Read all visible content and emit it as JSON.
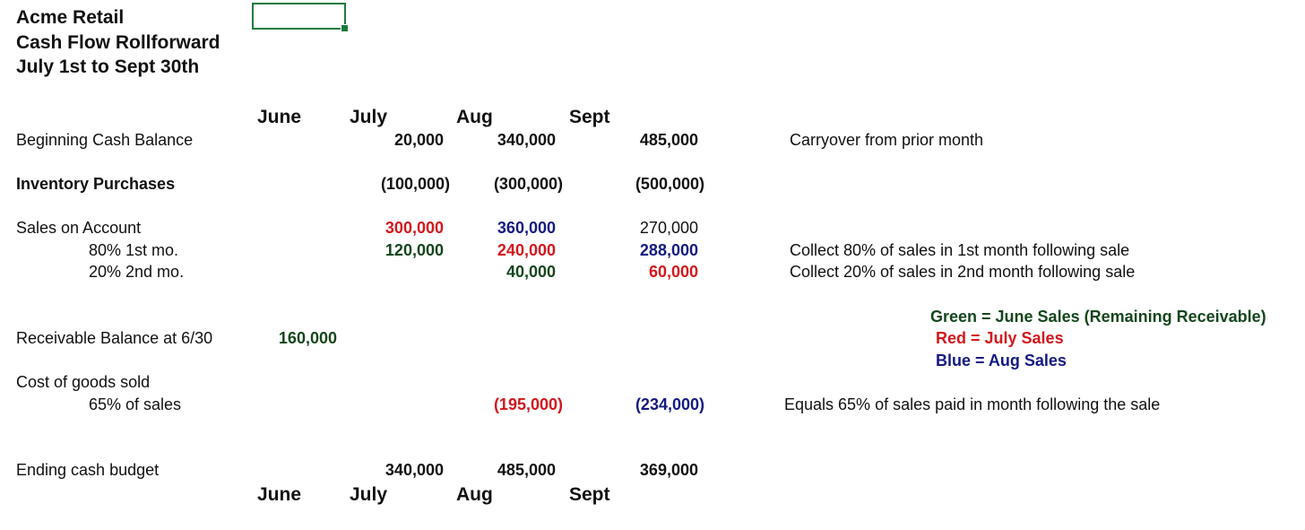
{
  "title": {
    "line1": "Acme Retail",
    "line2": "Cash Flow Rollforward",
    "line3": "July 1st to Sept 30th"
  },
  "months": [
    "June",
    "July",
    "Aug",
    "Sept"
  ],
  "rows": {
    "beginning_cash": {
      "label": "Beginning Cash Balance",
      "july": "20,000",
      "aug": "340,000",
      "sept": "485,000",
      "note": "Carryover from prior month"
    },
    "inventory": {
      "label": "Inventory Purchases",
      "july": "(100,000)",
      "aug": "(300,000)",
      "sept": "(500,000)"
    },
    "sales": {
      "label": "Sales on Account",
      "june": "300,000",
      "july": "360,000",
      "aug": "270,000"
    },
    "first_month": {
      "label": "80% 1st mo.",
      "july": "120,000",
      "aug": "240,000",
      "sept": "288,000",
      "note": "Collect 80% of sales in 1st month following sale"
    },
    "second_month": {
      "label": "20% 2nd mo.",
      "aug": "40,000",
      "sept": "60,000",
      "note": "Collect 20% of sales in 2nd month following sale"
    },
    "receivable": {
      "label": "Receivable Balance at 6/30",
      "june": "160,000"
    },
    "cogs": {
      "label": "Cost of goods sold"
    },
    "cogs_pct": {
      "label": "65% of sales",
      "aug": "(195,000)",
      "sept": "(234,000)",
      "note": "Equals 65% of sales paid in month following the sale"
    },
    "ending_cash": {
      "label": "Ending cash budget",
      "july": "340,000",
      "aug": "485,000",
      "sept": "369,000"
    }
  },
  "legend": {
    "green": "Green = June Sales (Remaining Receivable)",
    "red": "Red = July Sales",
    "blue": "Blue = Aug Sales"
  },
  "colors": {
    "green": "#14461c",
    "red": "#d3171c",
    "blue": "#141a82",
    "selection": "#1e7a3e"
  }
}
